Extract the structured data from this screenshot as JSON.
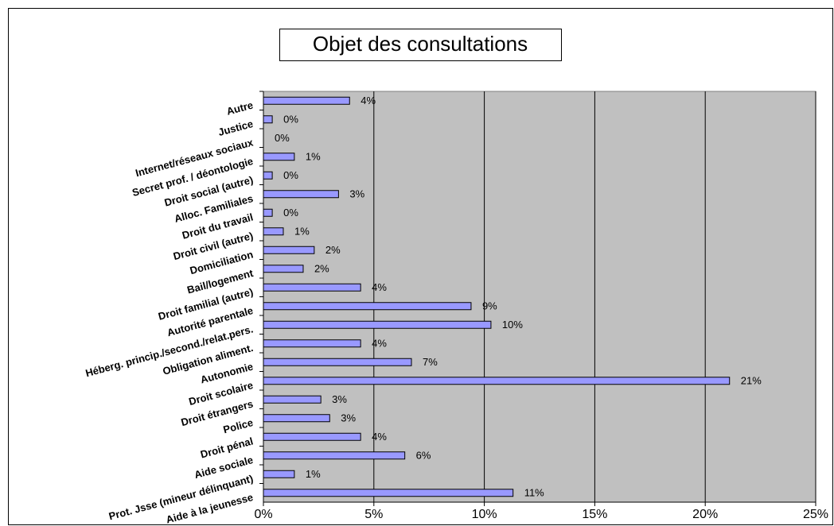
{
  "chart_data": {
    "type": "bar",
    "orientation": "horizontal",
    "title": "Objet des consultations",
    "categories": [
      "Autre",
      "Justice",
      "Internet/réseaux sociaux",
      "Secret prof. / déontologie",
      "Droit social (autre)",
      "Alloc. Familiales",
      "Droit du travail",
      "Droit civil (autre)",
      "Domiciliation",
      "Bail/logement",
      "Droit familial (autre)",
      "Autorité parentale",
      "Héberg. princip./second./relat.pers.",
      "Obligation aliment.",
      "Autonomie",
      "Droit scolaire",
      "Droit étrangers",
      "Police",
      "Droit pénal",
      "Aide sociale",
      "Prot. Jsse (mineur délinquant)",
      "Aide à la jeunesse"
    ],
    "values": [
      3.9,
      0.4,
      0,
      1.4,
      0.4,
      3.4,
      0.4,
      0.9,
      2.3,
      1.8,
      4.4,
      9.4,
      10.3,
      4.4,
      6.7,
      21.1,
      2.6,
      3.0,
      4.4,
      6.4,
      1.4,
      11.3
    ],
    "value_labels": [
      "4%",
      "0%",
      "0%",
      "1%",
      "0%",
      "3%",
      "0%",
      "1%",
      "2%",
      "2%",
      "4%",
      "9%",
      "10%",
      "4%",
      "7%",
      "21%",
      "3%",
      "3%",
      "4%",
      "6%",
      "1%",
      "11%"
    ],
    "color": "#9999ff",
    "xlim": [
      0,
      25
    ],
    "xticks": [
      {
        "value": 0,
        "label": "0%"
      },
      {
        "value": 5,
        "label": "5%"
      },
      {
        "value": 10,
        "label": "10%"
      },
      {
        "value": 15,
        "label": "15%"
      },
      {
        "value": 20,
        "label": "20%"
      },
      {
        "value": 25,
        "label": "25%"
      }
    ],
    "grid": true
  }
}
